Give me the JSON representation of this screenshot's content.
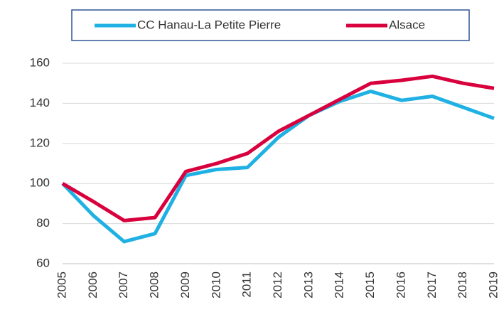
{
  "chart_data": {
    "type": "line",
    "categories": [
      "2005",
      "2006",
      "2007",
      "2008",
      "2009",
      "2010",
      "2011",
      "2012",
      "2013",
      "2014",
      "2015",
      "2016",
      "2017",
      "2018",
      "2019"
    ],
    "series": [
      {
        "name": "CC Hanau-La Petite Pierre",
        "color": "#1fb1e3",
        "values": [
          100,
          84,
          71,
          75,
          104,
          107,
          108,
          123,
          134,
          141,
          146,
          141.5,
          143.5,
          138,
          132.5
        ]
      },
      {
        "name": "Alsace",
        "color": "#d8003d",
        "values": [
          100,
          91,
          81.5,
          83,
          106,
          110,
          115,
          126,
          134,
          142,
          150,
          151.5,
          153.5,
          150,
          147.5
        ]
      }
    ],
    "ylim": [
      60,
      160
    ],
    "yticks": [
      60,
      80,
      100,
      120,
      140,
      160
    ],
    "grid": true,
    "legend": "top"
  }
}
